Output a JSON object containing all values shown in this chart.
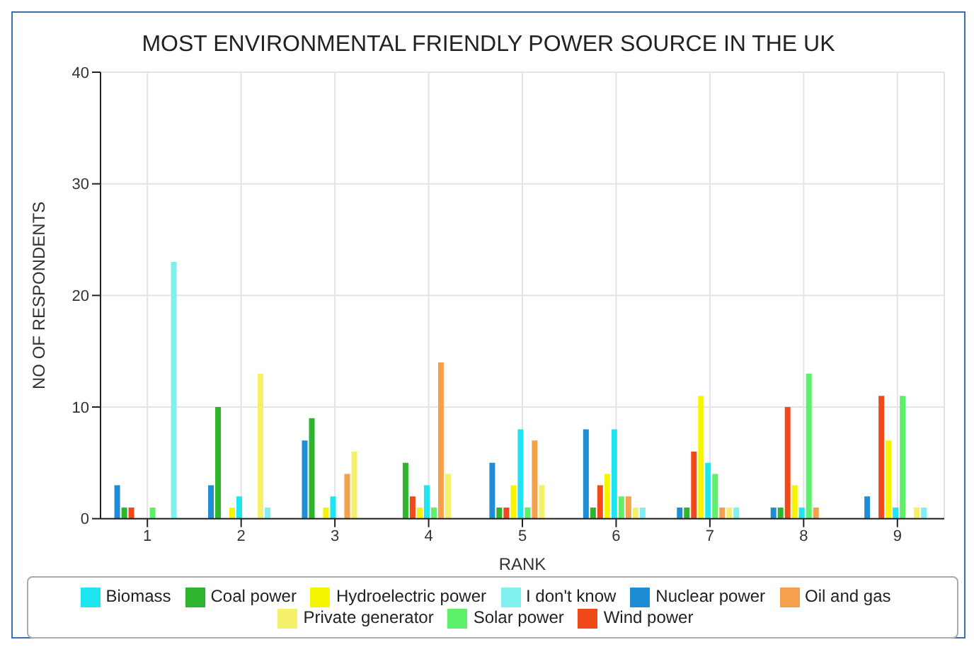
{
  "chart_data": {
    "type": "bar",
    "title": "MOST ENVIRONMENTAL FRIENDLY POWER SOURCE IN THE UK",
    "xlabel": "RANK",
    "ylabel": "NO OF RESPONDENTS",
    "categories": [
      "1",
      "2",
      "3",
      "4",
      "5",
      "6",
      "7",
      "8",
      "9"
    ],
    "series": [
      {
        "name": "Nuclear power",
        "color": "#1f8dd6",
        "values": [
          3,
          3,
          7,
          0,
          5,
          8,
          1,
          1,
          2
        ]
      },
      {
        "name": "Coal power",
        "color": "#2db52d",
        "values": [
          1,
          10,
          9,
          5,
          1,
          1,
          1,
          1,
          0
        ]
      },
      {
        "name": "Wind power",
        "color": "#f04a1a",
        "values": [
          1,
          0,
          0,
          2,
          1,
          3,
          6,
          10,
          11
        ]
      },
      {
        "name": "Hydroelectric power",
        "color": "#f5f500",
        "values": [
          0,
          1,
          1,
          1,
          3,
          4,
          11,
          3,
          7
        ]
      },
      {
        "name": "Biomass",
        "color": "#1fe5f0",
        "values": [
          0,
          2,
          2,
          3,
          8,
          8,
          5,
          1,
          1
        ]
      },
      {
        "name": "Solar power",
        "color": "#5ef06a",
        "values": [
          1,
          0,
          0,
          1,
          1,
          2,
          4,
          13,
          11
        ]
      },
      {
        "name": "Oil and gas",
        "color": "#f5a04a",
        "values": [
          0,
          0,
          4,
          14,
          7,
          2,
          1,
          1,
          0
        ]
      },
      {
        "name": "Private generator",
        "color": "#f5f06a",
        "values": [
          0,
          13,
          6,
          4,
          3,
          1,
          1,
          0,
          1
        ]
      },
      {
        "name": "I don't know",
        "color": "#7ff0ee",
        "values": [
          23,
          1,
          0,
          0,
          0,
          1,
          1,
          0,
          1
        ]
      }
    ],
    "ylim": [
      0,
      40
    ],
    "yticks": [
      0,
      10,
      20,
      30,
      40
    ],
    "grid": true,
    "legend": "bottom"
  }
}
